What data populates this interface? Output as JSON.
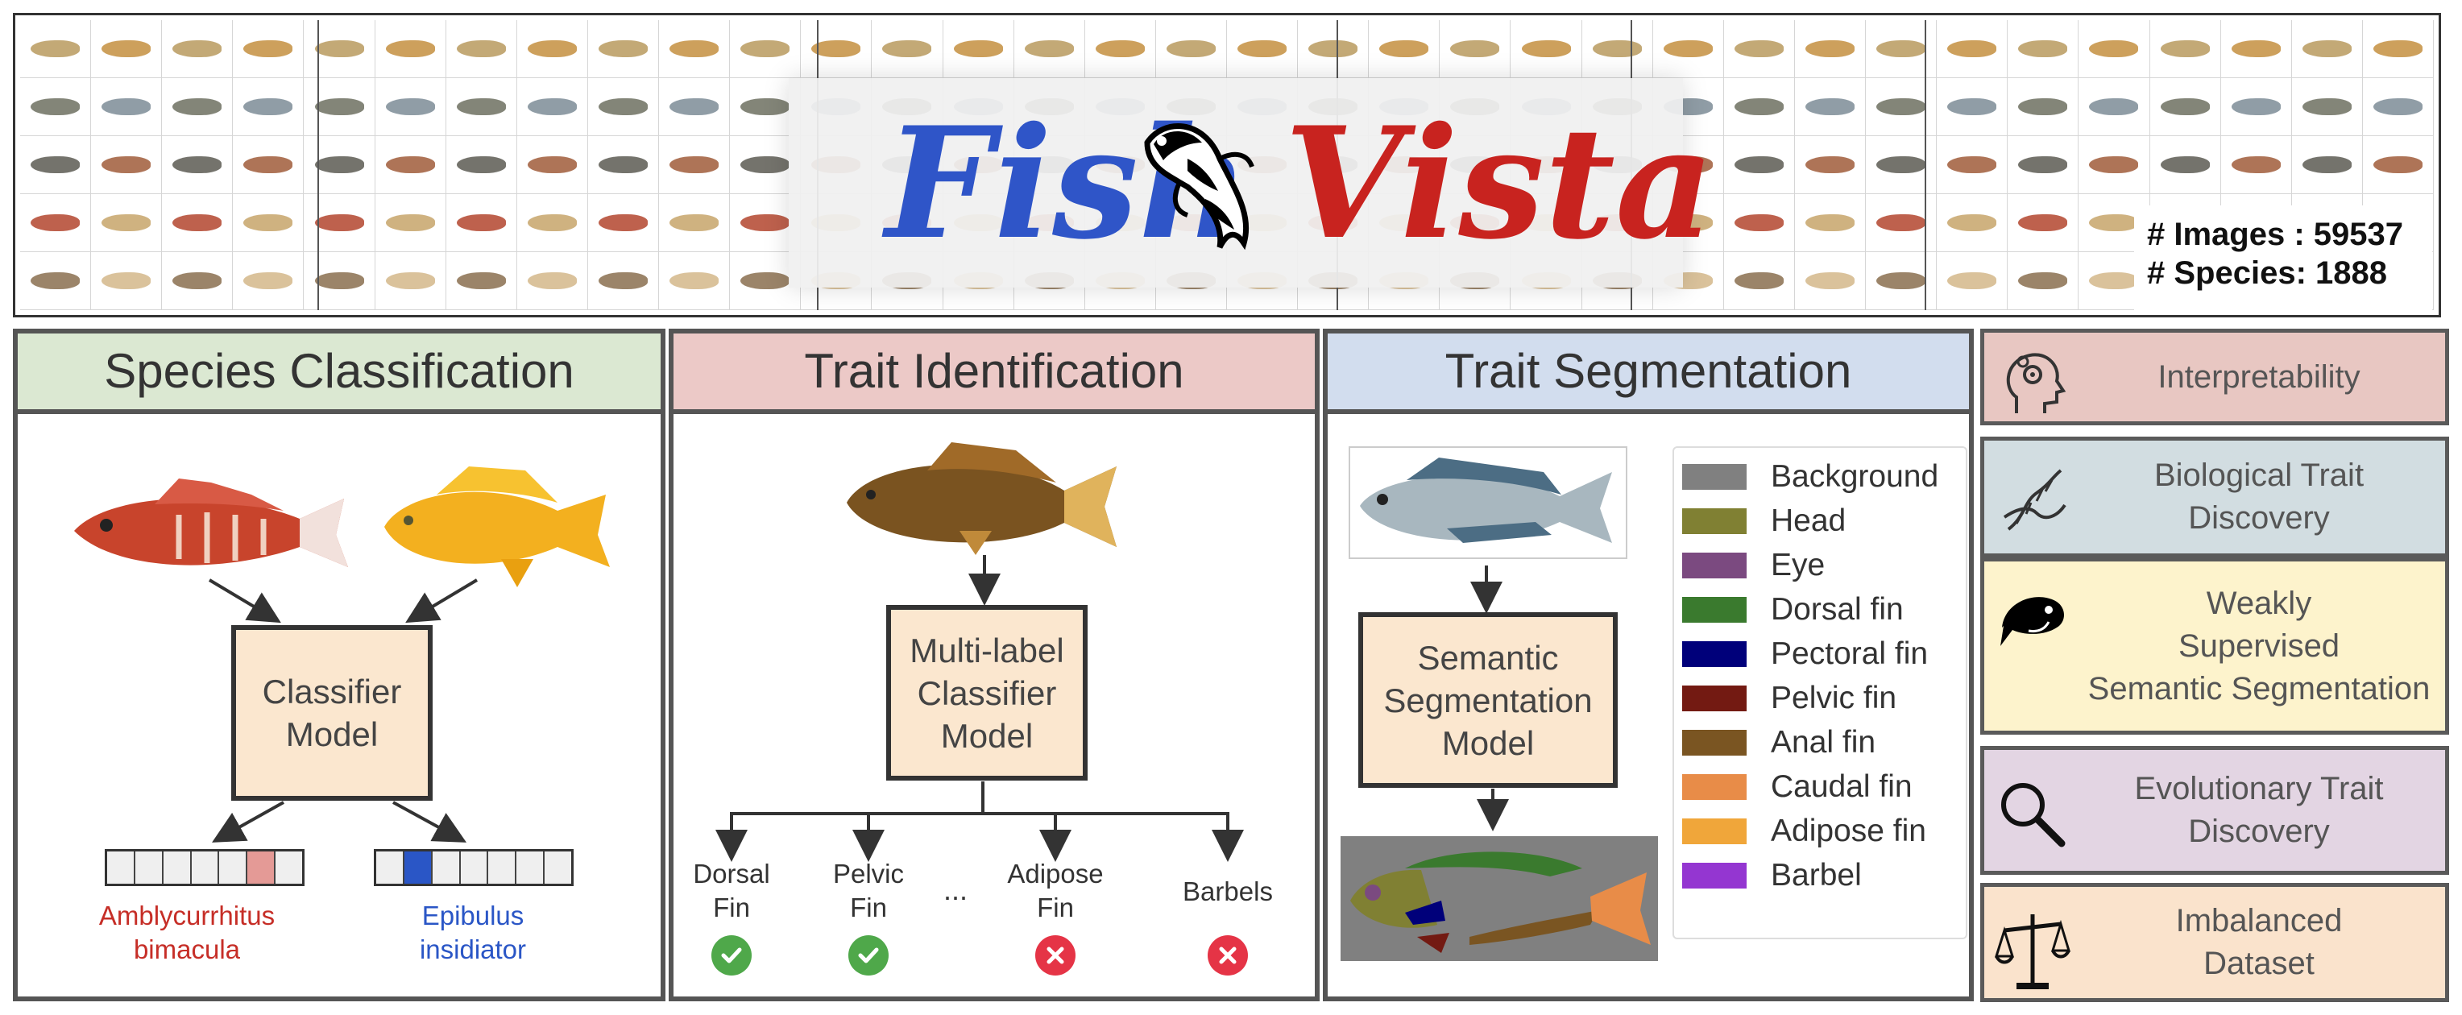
{
  "banner": {
    "logo_left": "Fish",
    "logo_right": "Vista",
    "stats_images": "# Images : 59537",
    "stats_species": "# Species: 1888"
  },
  "species_panel": {
    "title": "Species Classification",
    "model": [
      "Classifier",
      "Model"
    ],
    "label_left": [
      "Amblycurrhitus",
      "bimacula"
    ],
    "label_right": [
      "Epibulus",
      "insidiator"
    ]
  },
  "trait_id_panel": {
    "title": "Trait Identification",
    "model": [
      "Multi-label",
      "Classifier",
      "Model"
    ],
    "outputs": [
      {
        "label": [
          "Dorsal",
          "Fin"
        ],
        "present": true
      },
      {
        "label": [
          "Pelvic",
          "Fin"
        ],
        "present": true
      },
      {
        "label": [
          "..."
        ],
        "present": null
      },
      {
        "label": [
          "Adipose",
          "Fin"
        ],
        "present": false
      },
      {
        "label": [
          "Barbels"
        ],
        "present": false
      }
    ]
  },
  "trait_seg_panel": {
    "title": "Trait Segmentation",
    "model": [
      "Semantic",
      "Segmentation",
      "Model"
    ],
    "legend": [
      {
        "label": "Background",
        "color": "#808080"
      },
      {
        "label": "Head",
        "color": "#808033"
      },
      {
        "label": "Eye",
        "color": "#7b4a80"
      },
      {
        "label": "Dorsal fin",
        "color": "#3a7a2e"
      },
      {
        "label": "Pectoral fin",
        "color": "#00007a"
      },
      {
        "label": "Pelvic fin",
        "color": "#731a12"
      },
      {
        "label": "Anal fin",
        "color": "#7a5522"
      },
      {
        "label": "Caudal fin",
        "color": "#e88c48"
      },
      {
        "label": "Adipose fin",
        "color": "#f0a63a"
      },
      {
        "label": "Barbel",
        "color": "#9436d1"
      }
    ]
  },
  "applications": [
    {
      "lines": [
        "Interpretability"
      ],
      "bg": "#e8c7c2",
      "icon": "brain-gears-icon"
    },
    {
      "lines": [
        "Biological Trait",
        "Discovery"
      ],
      "bg": "#d2dde1",
      "icon": "dna-icon"
    },
    {
      "lines": [
        "Weakly",
        "Supervised",
        "Semantic Segmentation"
      ],
      "bg": "#fdf3cc",
      "icon": "fish-icon"
    },
    {
      "lines": [
        "Evolutionary Trait",
        "Discovery"
      ],
      "bg": "#e3d5e3",
      "icon": "magnifier-icon"
    },
    {
      "lines": [
        "Imbalanced",
        "Dataset"
      ],
      "bg": "#fae3cc",
      "icon": "balance-scale-icon"
    }
  ],
  "colors": {
    "logo_blue": "#2f55c8",
    "logo_red": "#c8231f",
    "species_header": "#dbe8d2",
    "trait_id_header": "#ecc9c7",
    "trait_seg_header": "#d2ddee",
    "check_green": "#4fa84a",
    "cross_red": "#e53446",
    "label_red": "#c62e27",
    "label_blue": "#2a56c6"
  }
}
